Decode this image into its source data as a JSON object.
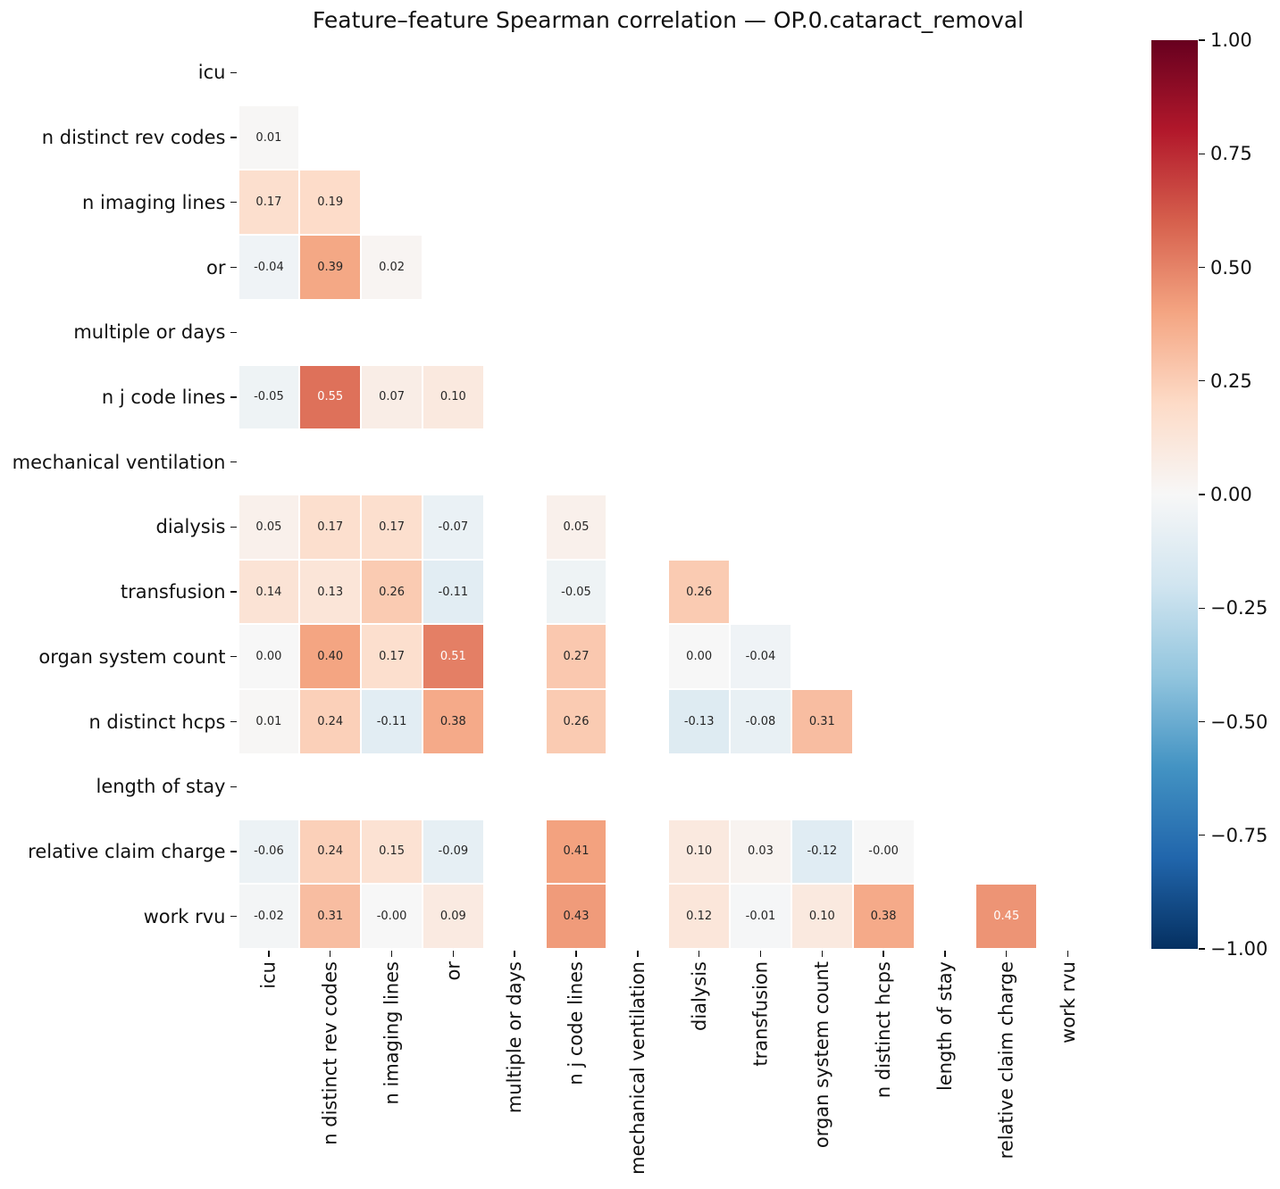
{
  "title": "Feature–feature Spearman correlation — OP.0.cataract_removal",
  "chart_data": {
    "type": "heatmap",
    "title": "Feature–feature Spearman correlation — OP.0.cataract_removal",
    "correlation_method": "spearman",
    "mask": "upper triangle and diagonal hidden; all-NaN features shown blank",
    "labels": [
      "icu",
      "n distinct rev codes",
      "n imaging lines",
      "or",
      "multiple or days",
      "n j code lines",
      "mechanical ventilation",
      "dialysis",
      "transfusion",
      "organ system count",
      "n distinct hcps",
      "length of stay",
      "relative claim charge",
      "work rvu"
    ],
    "matrix": [
      [
        null,
        null,
        null,
        null,
        null,
        null,
        null,
        null,
        null,
        null,
        null,
        null,
        null,
        null
      ],
      [
        "0.01",
        null,
        null,
        null,
        null,
        null,
        null,
        null,
        null,
        null,
        null,
        null,
        null,
        null
      ],
      [
        "0.17",
        "0.19",
        null,
        null,
        null,
        null,
        null,
        null,
        null,
        null,
        null,
        null,
        null,
        null
      ],
      [
        "-0.04",
        "0.39",
        "0.02",
        null,
        null,
        null,
        null,
        null,
        null,
        null,
        null,
        null,
        null,
        null
      ],
      [
        null,
        null,
        null,
        null,
        null,
        null,
        null,
        null,
        null,
        null,
        null,
        null,
        null,
        null
      ],
      [
        "-0.05",
        "0.55",
        "0.07",
        "0.10",
        null,
        null,
        null,
        null,
        null,
        null,
        null,
        null,
        null,
        null
      ],
      [
        null,
        null,
        null,
        null,
        null,
        null,
        null,
        null,
        null,
        null,
        null,
        null,
        null,
        null
      ],
      [
        "0.05",
        "0.17",
        "0.17",
        "-0.07",
        null,
        "0.05",
        null,
        null,
        null,
        null,
        null,
        null,
        null,
        null
      ],
      [
        "0.14",
        "0.13",
        "0.26",
        "-0.11",
        null,
        "-0.05",
        null,
        "0.26",
        null,
        null,
        null,
        null,
        null,
        null
      ],
      [
        "0.00",
        "0.40",
        "0.17",
        "0.51",
        null,
        "0.27",
        null,
        "0.00",
        "-0.04",
        null,
        null,
        null,
        null,
        null
      ],
      [
        "0.01",
        "0.24",
        "-0.11",
        "0.38",
        null,
        "0.26",
        null,
        "-0.13",
        "-0.08",
        "0.31",
        null,
        null,
        null,
        null
      ],
      [
        null,
        null,
        null,
        null,
        null,
        null,
        null,
        null,
        null,
        null,
        null,
        null,
        null,
        null
      ],
      [
        "-0.06",
        "0.24",
        "0.15",
        "-0.09",
        null,
        "0.41",
        null,
        "0.10",
        "0.03",
        "-0.12",
        "-0.00",
        null,
        null,
        null
      ],
      [
        "-0.02",
        "0.31",
        "-0.00",
        "0.09",
        null,
        "0.43",
        null,
        "0.12",
        "-0.01",
        "0.10",
        "0.38",
        null,
        "0.45",
        null
      ]
    ],
    "colorbar": {
      "vmin": -1,
      "vmax": 1,
      "tick_labels": [
        "1.00",
        "0.75",
        "0.50",
        "0.25",
        "0.00",
        "−0.25",
        "−0.50",
        "−0.75",
        "−1.00"
      ],
      "tick_values": [
        1.0,
        0.75,
        0.5,
        0.25,
        0.0,
        -0.25,
        -0.5,
        -0.75,
        -1.0
      ],
      "colormap": "RdBu_r",
      "colormap_colors": [
        "#053061",
        "#2166ac",
        "#4393c3",
        "#92c5de",
        "#d1e5f0",
        "#f7f7f7",
        "#fddbc7",
        "#f4a582",
        "#d6604d",
        "#b2182b",
        "#67001f"
      ]
    },
    "annotation_text_dark": "#262626",
    "annotation_text_light": "#ffffff",
    "legend_position": "right",
    "grid": false
  }
}
